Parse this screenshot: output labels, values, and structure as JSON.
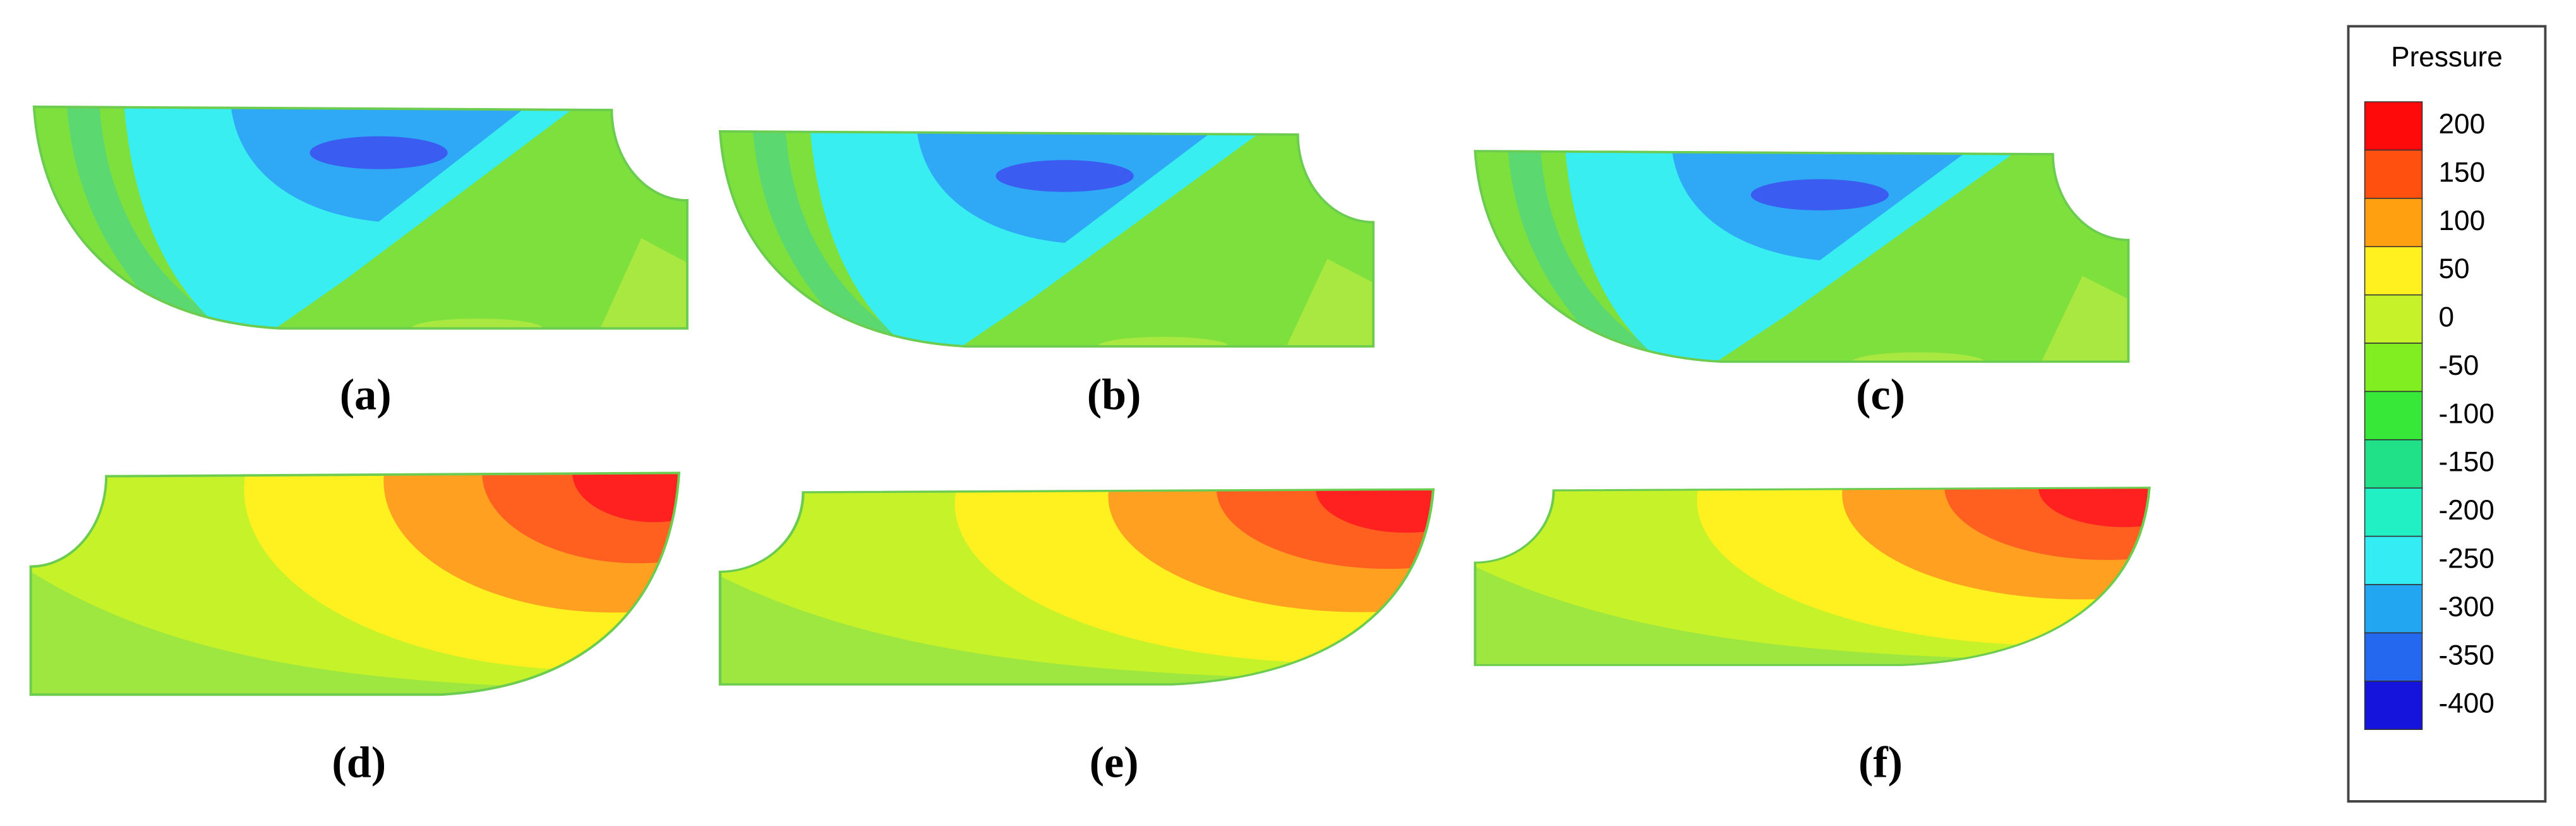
{
  "panels": [
    "(a)",
    "(b)",
    "(c)",
    "(d)",
    "(e)",
    "(f)"
  ],
  "legend": {
    "title": "Pressure",
    "levels": [
      200,
      150,
      100,
      50,
      0,
      -50,
      -100,
      -150,
      -200,
      -250,
      -300,
      -350,
      -400
    ],
    "colors": [
      "#ff0a0a",
      "#ff5010",
      "#ffa010",
      "#fff020",
      "#c6f22a",
      "#80ee20",
      "#38e838",
      "#20e088",
      "#20f0c4",
      "#34ecf4",
      "#22a6f2",
      "#2468f0",
      "#1414dc"
    ]
  }
}
